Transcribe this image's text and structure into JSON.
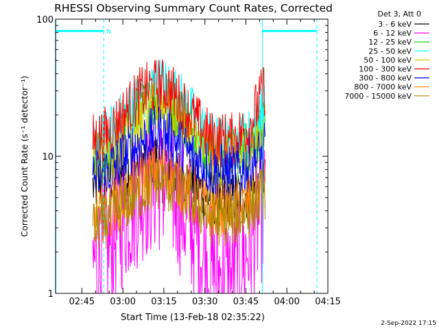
{
  "chart_data": {
    "type": "line",
    "title": "RHESSI Observing Summary Count Rates, Corrected",
    "xlabel": "Start Time (13-Feb-18 02:35:22)",
    "ylabel": "Corrected Count Rate (s⁻¹ detector⁻¹)",
    "y_scale": "log",
    "ylim": [
      1,
      100
    ],
    "yticks": [
      {
        "value": 1,
        "label": "1"
      },
      {
        "value": 10,
        "label": "10"
      },
      {
        "value": 100,
        "label": "100"
      }
    ],
    "xlim": [
      "02:35:22",
      "04:15:00"
    ],
    "xticks": [
      {
        "value": "02:45",
        "label": "02:45"
      },
      {
        "value": "03:00",
        "label": "03:00"
      },
      {
        "value": "03:15",
        "label": "03:15"
      },
      {
        "value": "03:30",
        "label": "03:30"
      },
      {
        "value": "03:45",
        "label": "03:45"
      },
      {
        "value": "04:00",
        "label": "04:00"
      },
      {
        "value": "04:15",
        "label": "04:15"
      }
    ],
    "legend_title": "Det 3, Att 0",
    "legend_position": "right",
    "data_start": "02:49:00",
    "data_end": "03:52:00",
    "series": [
      {
        "name": "3 - 6 keV",
        "color": "#000000",
        "control_points": [
          [
            "02:49",
            6
          ],
          [
            "02:55",
            7
          ],
          [
            "03:01",
            8
          ],
          [
            "03:07",
            9
          ],
          [
            "03:13",
            10
          ],
          [
            "03:17",
            9
          ],
          [
            "03:24",
            6.5
          ],
          [
            "03:32",
            5
          ],
          [
            "03:40",
            5
          ],
          [
            "03:46",
            5.5
          ],
          [
            "03:52",
            6
          ]
        ]
      },
      {
        "name": "6 - 12 keV",
        "color": "#ff00ff",
        "control_points": [
          [
            "02:49",
            1.6
          ],
          [
            "02:55",
            2.2
          ],
          [
            "03:01",
            3.8
          ],
          [
            "03:07",
            5.5
          ],
          [
            "03:13",
            6.5
          ],
          [
            "03:17",
            6
          ],
          [
            "03:24",
            3.5
          ],
          [
            "03:32",
            1.4
          ],
          [
            "03:40",
            1.3
          ],
          [
            "03:46",
            2.2
          ],
          [
            "03:52",
            4.5
          ]
        ]
      },
      {
        "name": "12 - 25 keV",
        "color": "#00cc00",
        "control_points": [
          [
            "02:49",
            9
          ],
          [
            "02:55",
            11
          ],
          [
            "03:01",
            16
          ],
          [
            "03:07",
            22
          ],
          [
            "03:13",
            26
          ],
          [
            "03:17",
            25
          ],
          [
            "03:24",
            17
          ],
          [
            "03:32",
            10.5
          ],
          [
            "03:40",
            10
          ],
          [
            "03:46",
            12
          ],
          [
            "03:52",
            16
          ]
        ]
      },
      {
        "name": "25 - 50 keV",
        "color": "#00ffff",
        "control_points": [
          [
            "02:49",
            12
          ],
          [
            "02:55",
            14
          ],
          [
            "03:01",
            20
          ],
          [
            "03:07",
            28
          ],
          [
            "03:13",
            34
          ],
          [
            "03:17",
            32
          ],
          [
            "03:24",
            22
          ],
          [
            "03:32",
            13
          ],
          [
            "03:40",
            12
          ],
          [
            "03:46",
            14
          ],
          [
            "03:52",
            22
          ]
        ]
      },
      {
        "name": "50 - 100 keV",
        "color": "#cccc00",
        "control_points": [
          [
            "02:49",
            8
          ],
          [
            "02:55",
            10
          ],
          [
            "03:01",
            14
          ],
          [
            "03:07",
            19
          ],
          [
            "03:13",
            23
          ],
          [
            "03:17",
            22
          ],
          [
            "03:24",
            15
          ],
          [
            "03:32",
            9.5
          ],
          [
            "03:40",
            9
          ],
          [
            "03:46",
            11
          ],
          [
            "03:52",
            15
          ]
        ]
      },
      {
        "name": "100 - 300 keV",
        "color": "#ff0000",
        "control_points": [
          [
            "02:49",
            13
          ],
          [
            "02:55",
            15
          ],
          [
            "03:01",
            21
          ],
          [
            "03:07",
            29
          ],
          [
            "03:13",
            33
          ],
          [
            "03:17",
            31
          ],
          [
            "03:24",
            21
          ],
          [
            "03:32",
            13.5
          ],
          [
            "03:40",
            13
          ],
          [
            "03:46",
            16
          ],
          [
            "03:52",
            32
          ]
        ]
      },
      {
        "name": "300 - 800 keV",
        "color": "#0000ff",
        "control_points": [
          [
            "02:49",
            7
          ],
          [
            "02:55",
            8
          ],
          [
            "03:01",
            10
          ],
          [
            "03:07",
            13
          ],
          [
            "03:13",
            15
          ],
          [
            "03:17",
            14
          ],
          [
            "03:24",
            10.5
          ],
          [
            "03:32",
            8
          ],
          [
            "03:40",
            7.5
          ],
          [
            "03:46",
            8.5
          ],
          [
            "03:52",
            11
          ]
        ]
      },
      {
        "name": "800 - 7000 keV",
        "color": "#ff8000",
        "control_points": [
          [
            "02:49",
            3.5
          ],
          [
            "02:55",
            4
          ],
          [
            "03:01",
            5
          ],
          [
            "03:07",
            6.5
          ],
          [
            "03:13",
            8
          ],
          [
            "03:17",
            7.5
          ],
          [
            "03:24",
            5.5
          ],
          [
            "03:32",
            4
          ],
          [
            "03:40",
            4
          ],
          [
            "03:46",
            4.5
          ],
          [
            "03:52",
            6
          ]
        ]
      },
      {
        "name": "7000 - 15000 keV",
        "color": "#aa8800",
        "control_points": [
          [
            "02:49",
            3
          ],
          [
            "02:55",
            3.5
          ],
          [
            "03:01",
            4.5
          ],
          [
            "03:07",
            5.5
          ],
          [
            "03:13",
            6.5
          ],
          [
            "03:17",
            6
          ],
          [
            "03:24",
            5
          ],
          [
            "03:32",
            3.5
          ],
          [
            "03:40",
            3.5
          ],
          [
            "03:46",
            4
          ],
          [
            "03:52",
            5.5
          ]
        ]
      }
    ],
    "annotations": [
      {
        "type": "night",
        "label": "N",
        "start": "02:35:22",
        "end": "02:53:00",
        "value": 82
      },
      {
        "type": "night",
        "label": "",
        "start": "03:51:00",
        "end": "04:11:00",
        "value": 82
      }
    ],
    "vertical_markers": [
      {
        "time": "02:35:22",
        "style": "solid"
      },
      {
        "time": "02:53:00",
        "style": "dashed"
      },
      {
        "time": "03:51:00",
        "style": "solid"
      },
      {
        "time": "04:11:00",
        "style": "dashed"
      }
    ],
    "marker_color": "#00ffff",
    "grid": false
  },
  "footer": {
    "date_stamp": "2-Sep-2022 17:15"
  }
}
